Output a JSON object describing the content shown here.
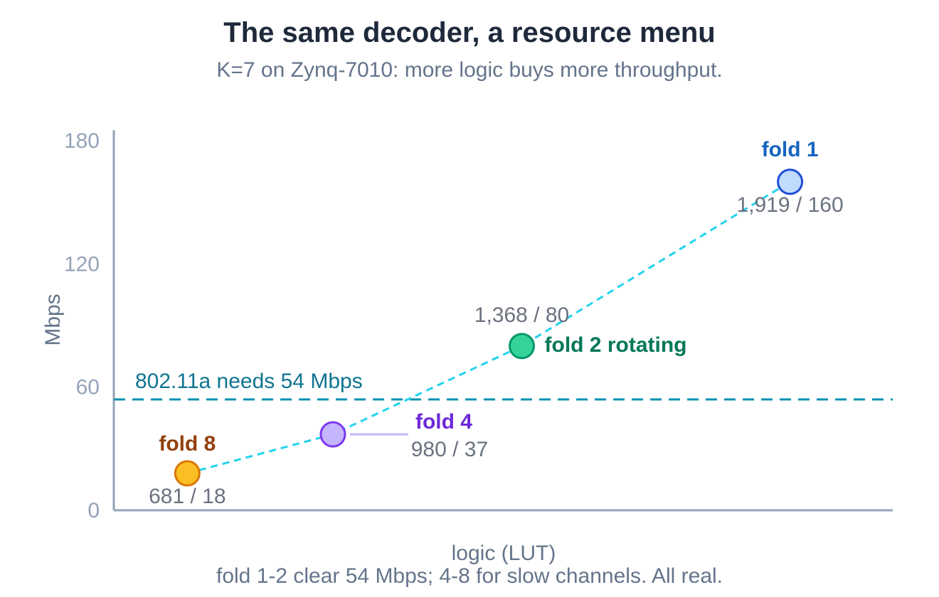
{
  "chart_data": {
    "type": "scatter",
    "title": "The same decoder, a resource menu",
    "subtitle": "K=7 on Zynq-7010: more logic buys more throughput.",
    "xlabel": "logic (LUT)",
    "ylabel": "Mbps",
    "ylim": [
      0,
      180
    ],
    "yticks": [
      0,
      60,
      120,
      180
    ],
    "grid": false,
    "connect_points": true,
    "points": [
      {
        "name": "fold 8",
        "x": 681,
        "y": 18,
        "value_label": "681 / 18",
        "color": "#fbbf24",
        "edge": "#d97706",
        "label_color": "#92400e"
      },
      {
        "name": "fold 4",
        "x": 980,
        "y": 37,
        "value_label": "980 / 37",
        "color": "#c4b5fd",
        "edge": "#7c3aed",
        "label_color": "#6d28d9"
      },
      {
        "name": "fold 2 rotating",
        "x": 1368,
        "y": 80,
        "value_label": "1,368 / 80",
        "color": "#34d399",
        "edge": "#059669",
        "label_color": "#047857"
      },
      {
        "name": "fold 1",
        "x": 1919,
        "y": 160,
        "value_label": "1,919 / 160",
        "color": "#bfdbfe",
        "edge": "#1d4ed8",
        "label_color": "#1565c0"
      }
    ],
    "line_color": "#22d3ee",
    "reference_line": {
      "y": 54,
      "label": "802.11a needs 54 Mbps",
      "color": "#0891b2",
      "label_color": "#0e7490"
    },
    "footnote": "fold 1-2 clear 54 Mbps; 4-8 for slow channels. All real."
  }
}
